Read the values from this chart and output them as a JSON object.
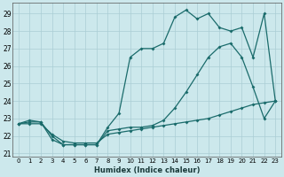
{
  "xlabel": "Humidex (Indice chaleur)",
  "bg_color": "#cce8ec",
  "grid_color": "#aacdd4",
  "line_color": "#1a6b6b",
  "xlim": [
    -0.5,
    23.5
  ],
  "ylim": [
    20.8,
    29.6
  ],
  "xticks": [
    0,
    1,
    2,
    3,
    4,
    5,
    6,
    7,
    8,
    9,
    10,
    11,
    12,
    13,
    14,
    15,
    16,
    17,
    18,
    19,
    20,
    21,
    22,
    23
  ],
  "yticks": [
    21,
    22,
    23,
    24,
    25,
    26,
    27,
    28,
    29
  ],
  "curve1_x": [
    0,
    1,
    2,
    3,
    4,
    5,
    6,
    7,
    8,
    9,
    10,
    11,
    12,
    13,
    14,
    15,
    16,
    17,
    18,
    19,
    20,
    21,
    22,
    23
  ],
  "curve1_y": [
    22.7,
    22.9,
    22.8,
    21.8,
    21.5,
    21.5,
    21.5,
    21.5,
    22.5,
    23.3,
    26.5,
    27.0,
    27.0,
    27.3,
    28.8,
    29.2,
    28.7,
    29.0,
    28.2,
    28.0,
    28.2,
    26.5,
    29.0,
    24.0
  ],
  "curve2_x": [
    0,
    1,
    2,
    3,
    4,
    5,
    6,
    7,
    8,
    9,
    10,
    11,
    12,
    13,
    14,
    15,
    16,
    17,
    18,
    19,
    20,
    21,
    22,
    23
  ],
  "curve2_y": [
    22.7,
    22.8,
    22.8,
    22.0,
    21.5,
    21.5,
    21.5,
    21.5,
    22.3,
    22.4,
    22.5,
    22.5,
    22.6,
    22.9,
    23.6,
    24.5,
    25.5,
    26.5,
    27.1,
    27.3,
    26.5,
    24.8,
    23.0,
    24.0
  ],
  "curve3_x": [
    0,
    1,
    2,
    3,
    4,
    5,
    6,
    7,
    8,
    9,
    10,
    11,
    12,
    13,
    14,
    15,
    16,
    17,
    18,
    19,
    20,
    21,
    22,
    23
  ],
  "curve3_y": [
    22.7,
    22.7,
    22.7,
    22.1,
    21.7,
    21.6,
    21.6,
    21.6,
    22.1,
    22.2,
    22.3,
    22.4,
    22.5,
    22.6,
    22.7,
    22.8,
    22.9,
    23.0,
    23.2,
    23.4,
    23.6,
    23.8,
    23.9,
    24.0
  ]
}
